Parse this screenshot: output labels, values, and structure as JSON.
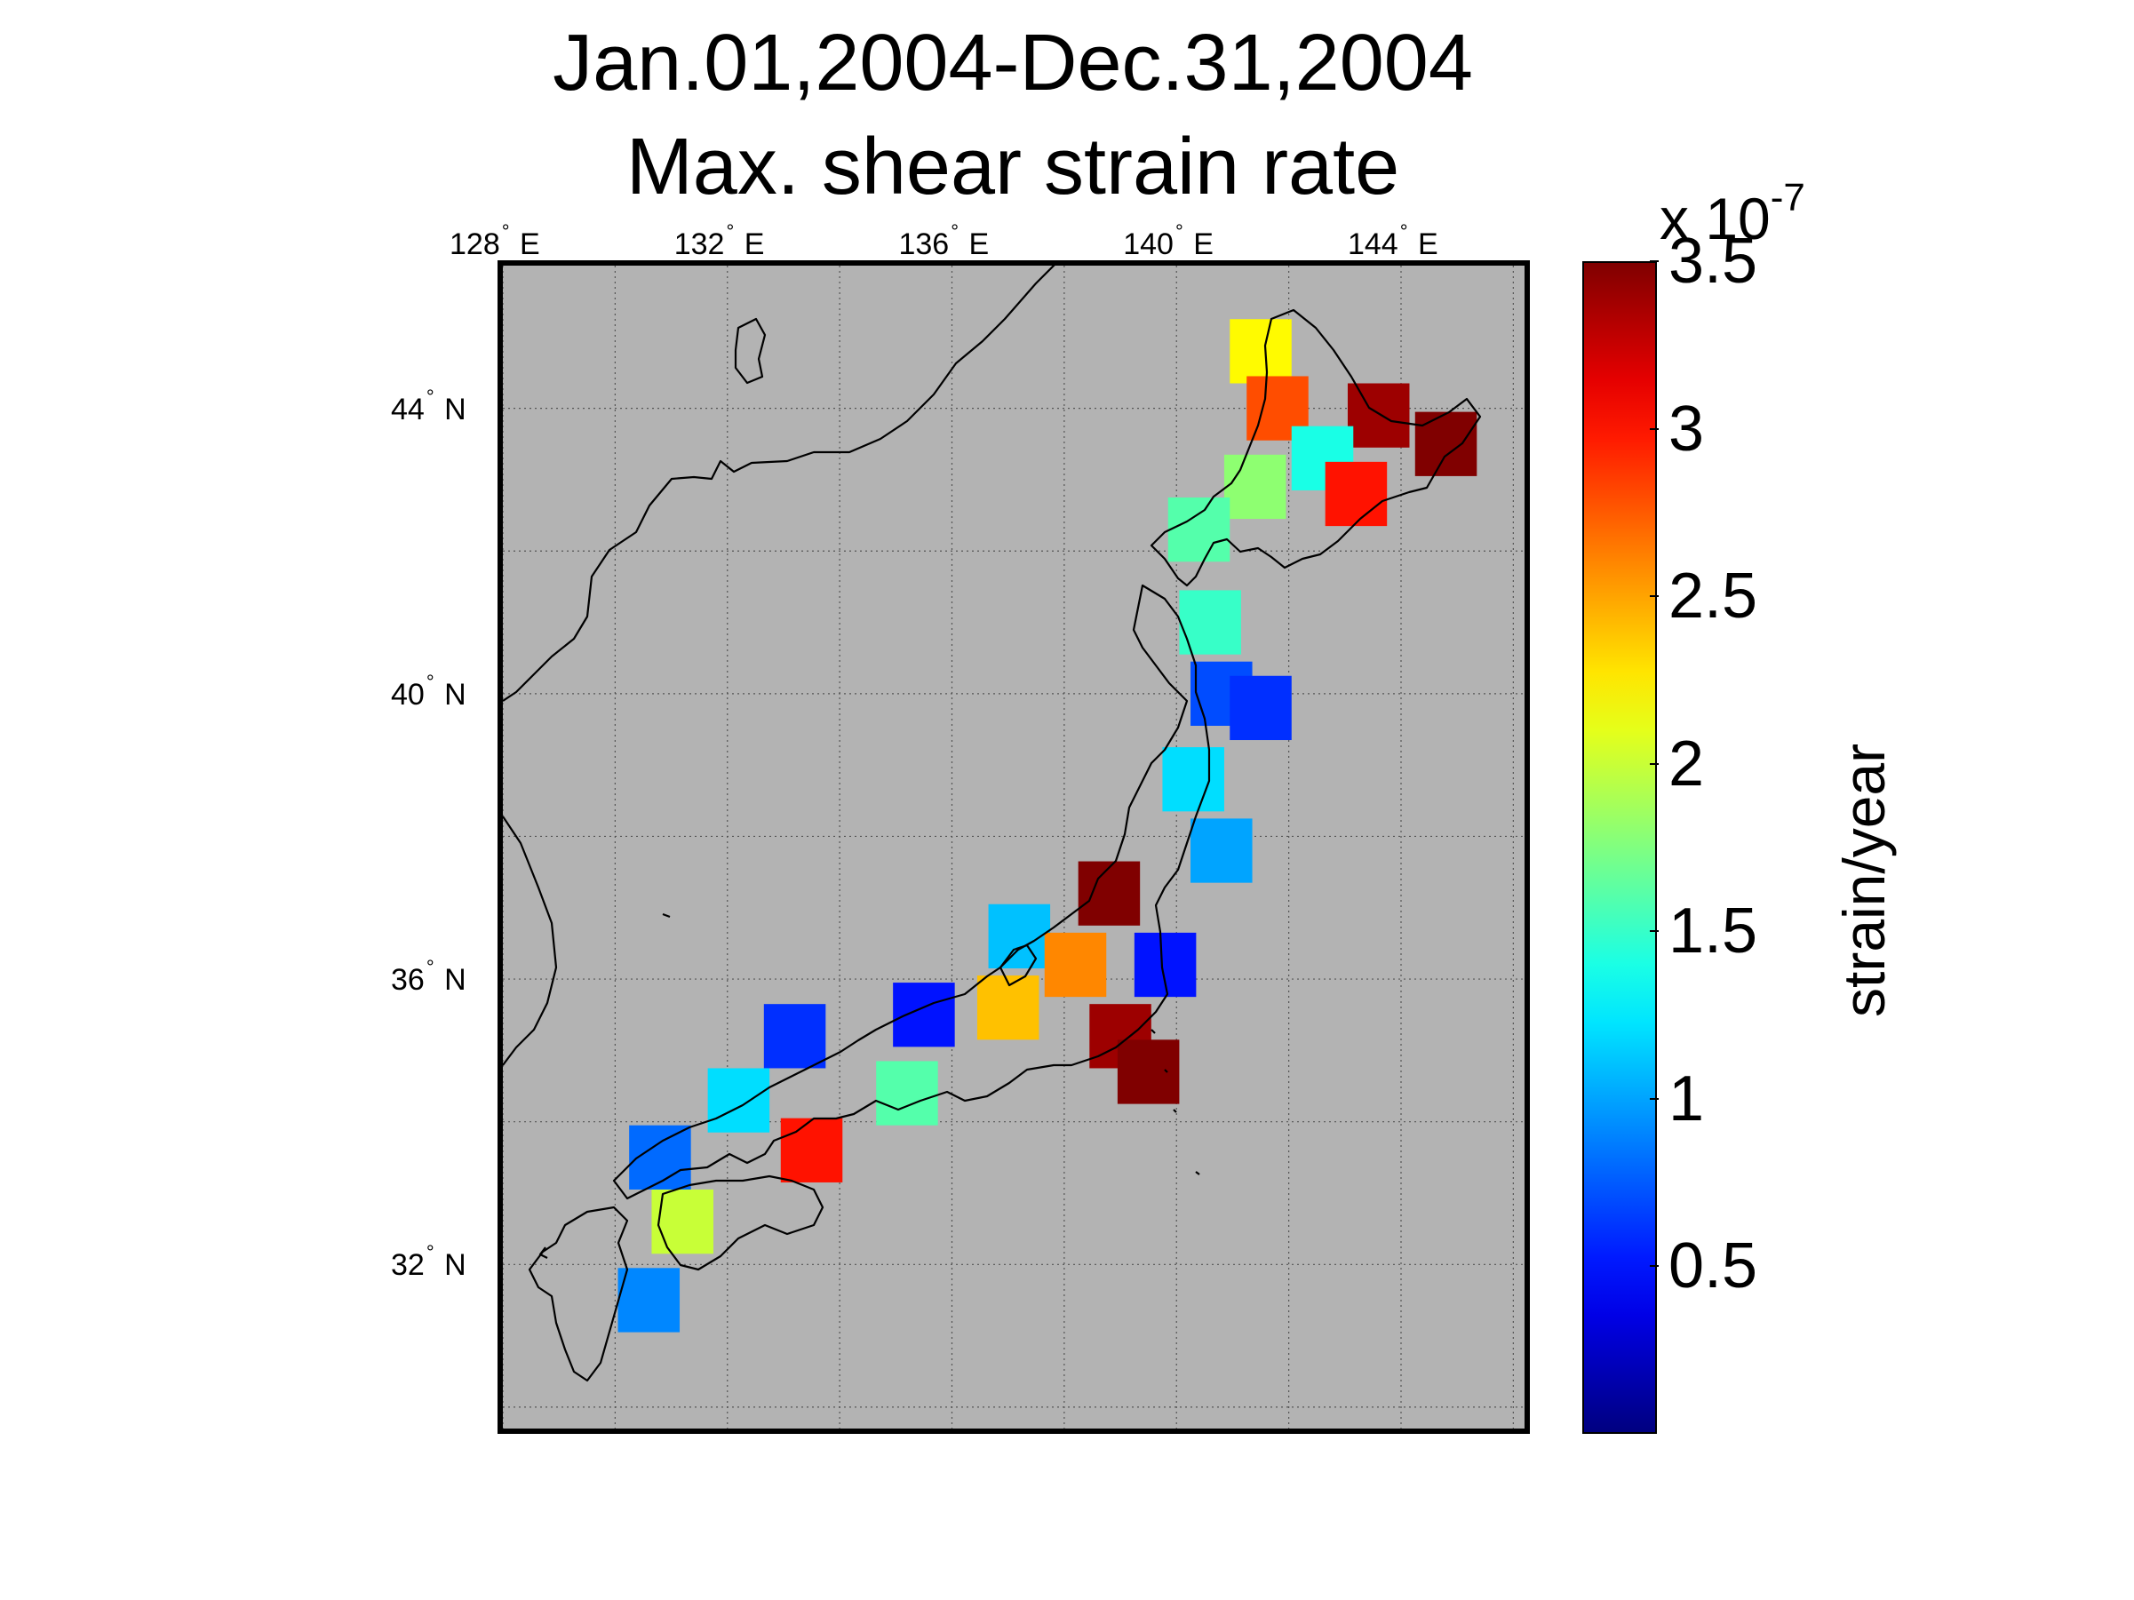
{
  "title": {
    "line1": "Jan.01,2004-Dec.31,2004",
    "line2": "Max. shear strain rate"
  },
  "colors": {
    "background": "#ffffff",
    "land_sea_fill": "#b3b3b3",
    "coastline": "#000000",
    "grid": "#555555"
  },
  "chart_data": {
    "type": "heatmap",
    "title": "Jan.01,2004-Dec.31,2004 Max. shear strain rate",
    "projection": "latitude-longitude map",
    "xlim_deg_E": [
      128,
      146.2
    ],
    "ylim_deg_N": [
      29.7,
      46.0
    ],
    "lon_ticks": [
      {
        "value": 128,
        "label": "128",
        "suffix": "E"
      },
      {
        "value": 132,
        "label": "132",
        "suffix": "E"
      },
      {
        "value": 136,
        "label": "136",
        "suffix": "E"
      },
      {
        "value": 140,
        "label": "140",
        "suffix": "E"
      },
      {
        "value": 144,
        "label": "144",
        "suffix": "E"
      }
    ],
    "lat_ticks": [
      {
        "value": 44,
        "label": "44",
        "suffix": "N"
      },
      {
        "value": 40,
        "label": "40",
        "suffix": "N"
      },
      {
        "value": 36,
        "label": "36",
        "suffix": "N"
      },
      {
        "value": 32,
        "label": "32",
        "suffix": "N"
      }
    ],
    "grid": true,
    "colormap": "jet",
    "colorbar": {
      "min": 0,
      "max": 3.5,
      "ticks": [
        "0.5",
        "1",
        "1.5",
        "2",
        "2.5",
        "3",
        "3.5"
      ],
      "exponent_prefix": "x 10",
      "exponent": "-7",
      "label": "strain/year",
      "placement": "right"
    },
    "regions": [
      {
        "lon": 141.5,
        "lat": 44.8,
        "value": 2.2
      },
      {
        "lon": 141.8,
        "lat": 44.0,
        "value": 2.8
      },
      {
        "lon": 143.6,
        "lat": 43.9,
        "value": 3.4
      },
      {
        "lon": 144.8,
        "lat": 43.5,
        "value": 3.5
      },
      {
        "lon": 142.6,
        "lat": 43.3,
        "value": 1.4
      },
      {
        "lon": 141.4,
        "lat": 42.9,
        "value": 1.8
      },
      {
        "lon": 143.2,
        "lat": 42.8,
        "value": 3.0
      },
      {
        "lon": 140.4,
        "lat": 42.3,
        "value": 1.6
      },
      {
        "lon": 140.6,
        "lat": 41.0,
        "value": 1.5
      },
      {
        "lon": 140.8,
        "lat": 40.0,
        "value": 0.7
      },
      {
        "lon": 141.5,
        "lat": 39.8,
        "value": 0.6
      },
      {
        "lon": 140.3,
        "lat": 38.8,
        "value": 1.2
      },
      {
        "lon": 140.8,
        "lat": 37.8,
        "value": 1.0
      },
      {
        "lon": 138.8,
        "lat": 37.2,
        "value": 3.5
      },
      {
        "lon": 137.2,
        "lat": 36.6,
        "value": 1.1
      },
      {
        "lon": 138.2,
        "lat": 36.2,
        "value": 2.6
      },
      {
        "lon": 139.8,
        "lat": 36.2,
        "value": 0.5
      },
      {
        "lon": 137.0,
        "lat": 35.6,
        "value": 2.4
      },
      {
        "lon": 139.0,
        "lat": 35.2,
        "value": 3.4
      },
      {
        "lon": 139.5,
        "lat": 34.7,
        "value": 3.5
      },
      {
        "lon": 135.5,
        "lat": 35.5,
        "value": 0.5
      },
      {
        "lon": 133.2,
        "lat": 35.2,
        "value": 0.6
      },
      {
        "lon": 135.2,
        "lat": 34.4,
        "value": 1.6
      },
      {
        "lon": 133.5,
        "lat": 33.6,
        "value": 3.0
      },
      {
        "lon": 132.2,
        "lat": 34.3,
        "value": 1.2
      },
      {
        "lon": 130.8,
        "lat": 33.5,
        "value": 0.8
      },
      {
        "lon": 131.2,
        "lat": 32.6,
        "value": 2.0
      },
      {
        "lon": 130.6,
        "lat": 31.5,
        "value": 0.9
      }
    ]
  }
}
